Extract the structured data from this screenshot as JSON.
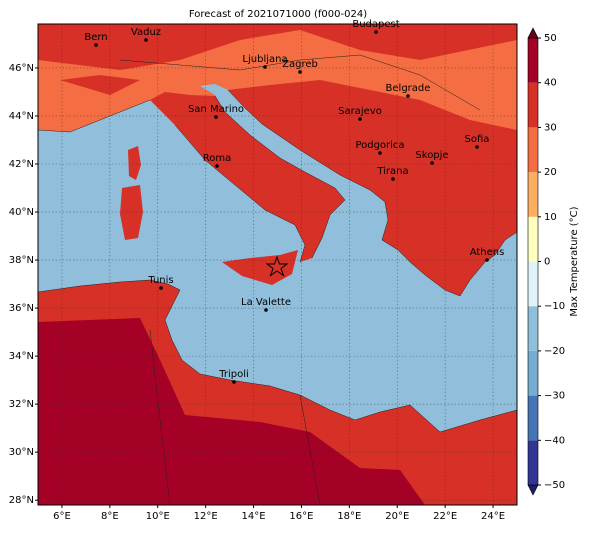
{
  "chart_data": {
    "type": "map",
    "title": "Forecast of 2021071000 (f000-024)",
    "xlim": [
      5,
      25
    ],
    "ylim": [
      27.8,
      47.83
    ],
    "xticks": [
      {
        "value": 6,
        "label": "6°E"
      },
      {
        "value": 8,
        "label": "8°E"
      },
      {
        "value": 10,
        "label": "10°E"
      },
      {
        "value": 12,
        "label": "12°E"
      },
      {
        "value": 14,
        "label": "14°E"
      },
      {
        "value": 16,
        "label": "16°E"
      },
      {
        "value": 18,
        "label": "18°E"
      },
      {
        "value": 20,
        "label": "20°E"
      },
      {
        "value": 22,
        "label": "22°E"
      },
      {
        "value": 24,
        "label": "24°E"
      }
    ],
    "yticks": [
      {
        "value": 28,
        "label": "28°N"
      },
      {
        "value": 30,
        "label": "30°N"
      },
      {
        "value": 32,
        "label": "32°N"
      },
      {
        "value": 34,
        "label": "34°N"
      },
      {
        "value": 36,
        "label": "36°N"
      },
      {
        "value": 38,
        "label": "38°N"
      },
      {
        "value": 40,
        "label": "40°N"
      },
      {
        "value": 42,
        "label": "42°N"
      },
      {
        "value": 44,
        "label": "44°N"
      },
      {
        "value": 46,
        "label": "46°N"
      }
    ],
    "grid": true,
    "cities": [
      "Bern",
      "Vaduz",
      "Budapest",
      "Ljubljana",
      "Zagreb",
      "Belgrade",
      "San Marino",
      "Sarajevo",
      "Sofia",
      "Podgorica",
      "Skopje",
      "Roma",
      "Tirana",
      "Athens",
      "Tunis",
      "La Valette",
      "Tripoli"
    ],
    "colorbar": {
      "label": "Max Temperature (°C)",
      "lim": [
        -50,
        50
      ],
      "ticks": [
        {
          "value": -50,
          "label": "−50"
        },
        {
          "value": -40,
          "label": "−40"
        },
        {
          "value": -30,
          "label": "−30"
        },
        {
          "value": -20,
          "label": "−20"
        },
        {
          "value": -10,
          "label": "−10"
        },
        0,
        10,
        20,
        30,
        40,
        50
      ],
      "colors": [
        "#313695",
        "#4575b4",
        "#74add1",
        "#91bfdb",
        "#e0f3f8",
        "#ffffbf",
        "#fdae61",
        "#f46d43",
        "#d73027",
        "#a50026"
      ],
      "extend_colors": [
        "#1d1f6b",
        "#67001f"
      ]
    }
  }
}
